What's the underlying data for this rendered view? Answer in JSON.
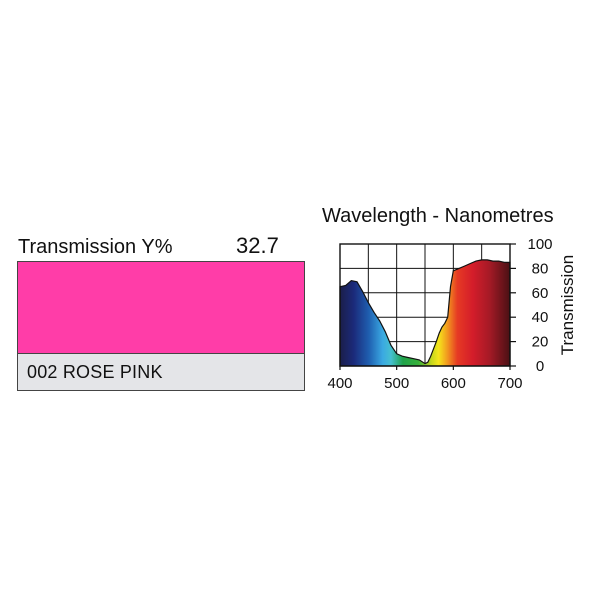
{
  "filter": {
    "transmission_label": "Transmission Y%",
    "transmission_value": "32.7",
    "name": "002 ROSE PINK",
    "swatch_color": "#ff3da8",
    "name_band_color": "#e4e5e8"
  },
  "chart_data": {
    "type": "area",
    "title": "Wavelength - Nanometres",
    "ylabel": "Transmission",
    "xlabel": "",
    "xlim": [
      400,
      700
    ],
    "ylim": [
      0,
      100
    ],
    "x_ticks": [
      400,
      500,
      600,
      700
    ],
    "y_ticks": [
      0,
      20,
      40,
      60,
      80,
      100
    ],
    "grid": true,
    "fill": "visible-spectrum gradient",
    "series": [
      {
        "x": [
          400,
          410,
          420,
          430,
          440,
          450,
          460,
          470,
          480,
          490,
          500,
          510,
          520,
          530,
          540,
          550,
          555,
          560,
          570,
          575,
          580,
          585,
          590,
          595,
          600,
          610,
          620,
          630,
          640,
          650,
          660,
          670,
          680,
          690,
          700
        ],
        "y": [
          65,
          66,
          70,
          69,
          61,
          52,
          44,
          37,
          28,
          17,
          10,
          8,
          7,
          6,
          5,
          2,
          3,
          8,
          20,
          27,
          32,
          35,
          40,
          65,
          78,
          80,
          82,
          84,
          86,
          87,
          87,
          86,
          86,
          85,
          85
        ]
      }
    ]
  }
}
